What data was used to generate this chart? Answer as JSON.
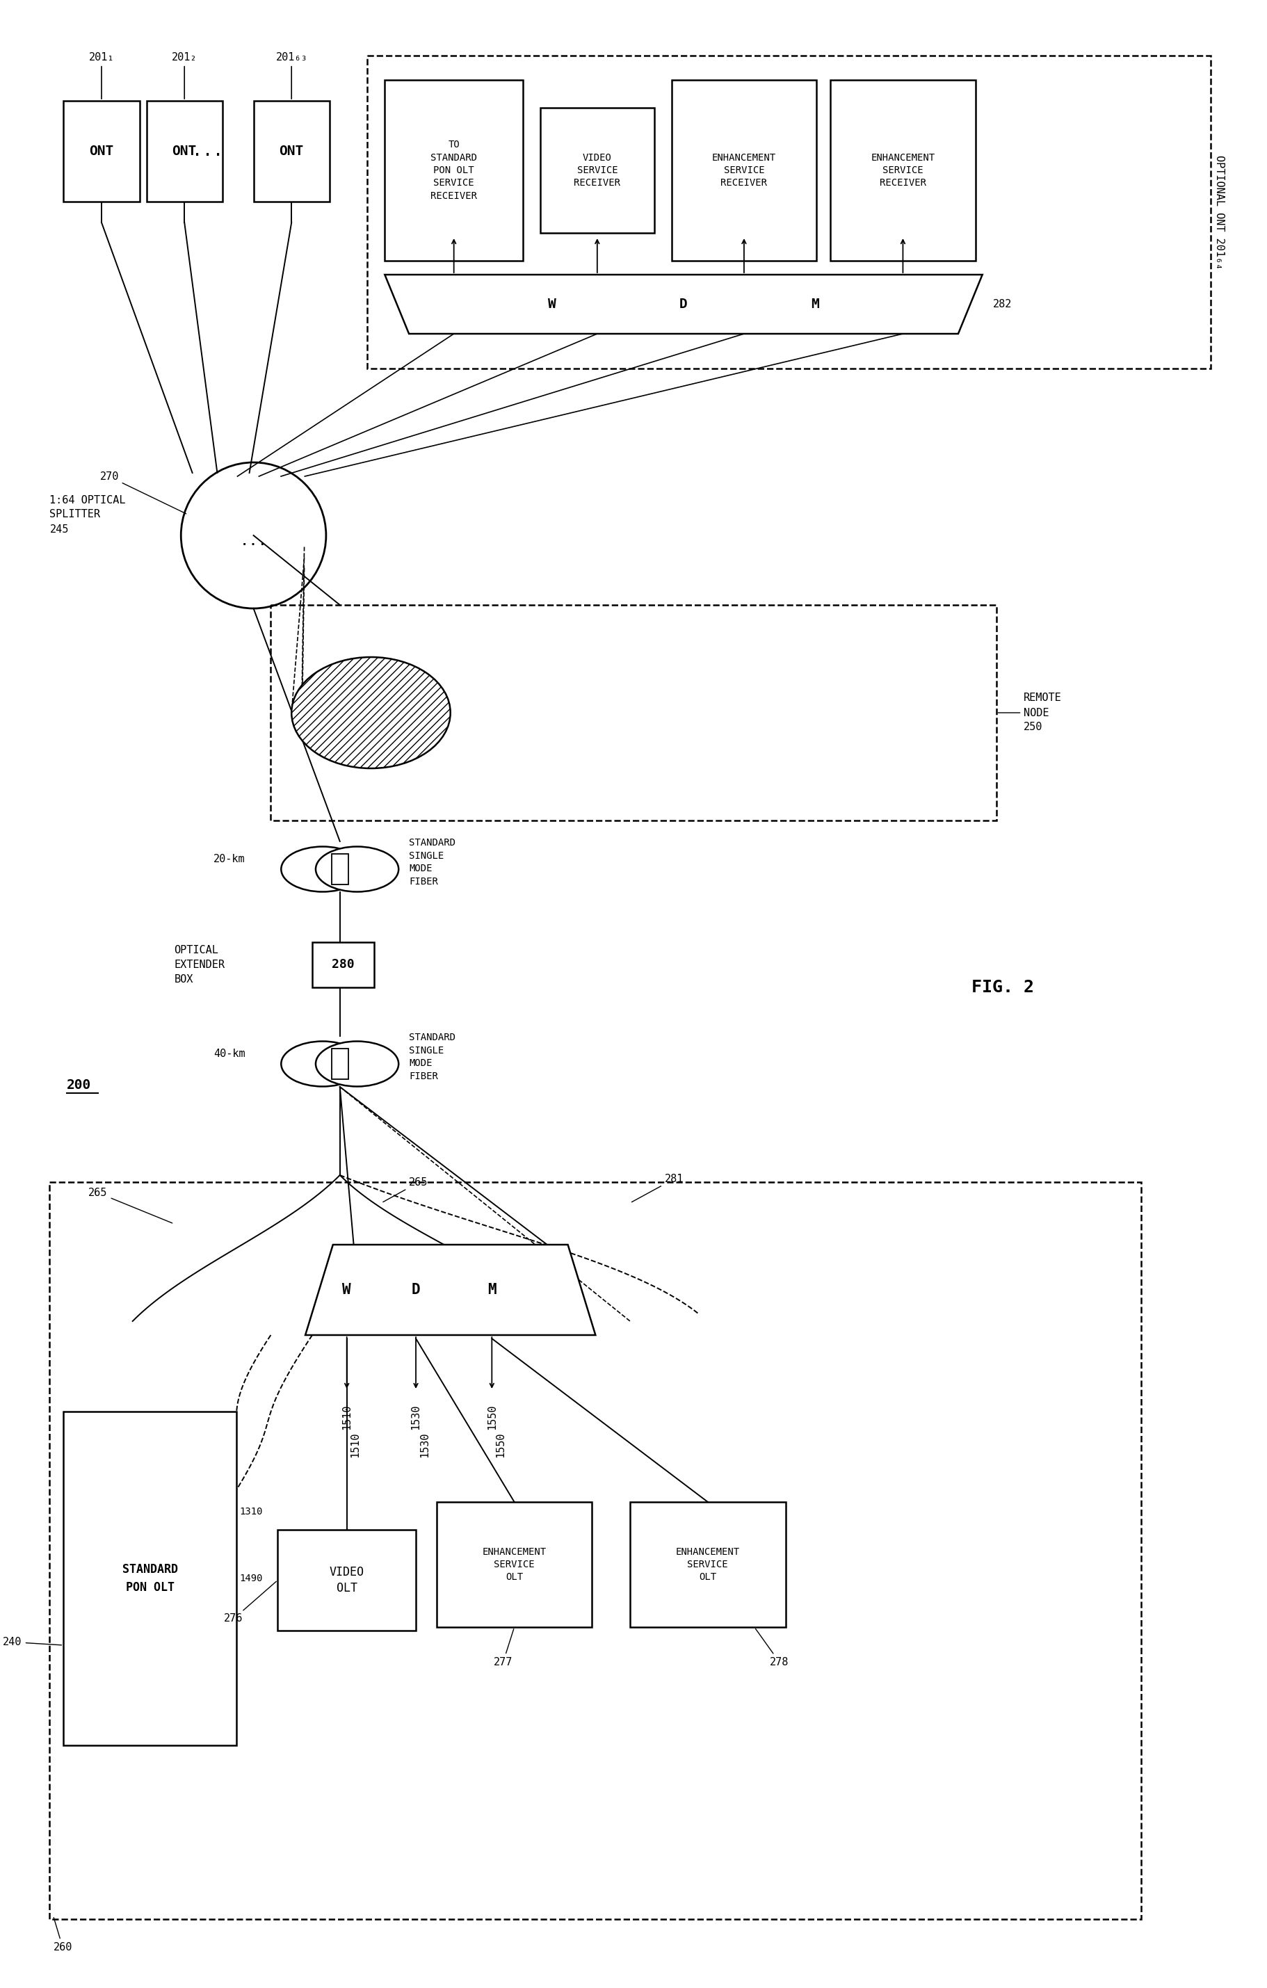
{
  "bg": "#ffffff",
  "fig_label": "FIG. 2",
  "system_num": "200",
  "ont_refs": [
    "201₁",
    "201₂",
    "201₆₃"
  ],
  "ont_label": "ONT",
  "optional_ont_label": "OPTIONAL ONT 201₆₄",
  "ref_282": "282",
  "recv_labels": [
    "TO\nSTANDARD\nPON OLT\nSERVICE\nRECEIVER",
    "VIDEO\nSERVICE\nRECEIVER",
    "ENHANCEMENT\nSERVICE\nRECEIVER",
    "ENHANCEMENT\nSERVICE\nRECEIVER"
  ],
  "wdm_labels": [
    "W",
    "D",
    "M"
  ],
  "splitter_label": "270",
  "optical_splitter_label": "1:64 OPTICAL\nSPLITTER\n245",
  "remote_node_label": "REMOTE\nNODE\n250",
  "extender_label": "280",
  "extender_box_label": "OPTICAL\nEXTENDER\nBOX",
  "smf_label": "STANDARD\nSINGLE\nMODE\nFIBER",
  "label_20km": "20-km",
  "label_40km": "40-km",
  "label_265a": "265",
  "label_265b": "265",
  "label_281": "281",
  "std_pon_olt_label": "STANDARD\nPON OLT",
  "std_pon_olt_ref": "240",
  "wl_1310": "1310",
  "wl_1490": "1490",
  "wl_arrows": [
    "1510",
    "1530",
    "1550"
  ],
  "video_olt_label": "VIDEO\nOLT",
  "video_olt_ref": "276",
  "enh1_label": "ENHANCEMENT\nSERVICE\nOLT",
  "enh1_ref": "277",
  "enh2_label": "ENHANCEMENT\nSERVICE\nOLT",
  "enh2_ref": "278",
  "olt_box_ref": "260"
}
